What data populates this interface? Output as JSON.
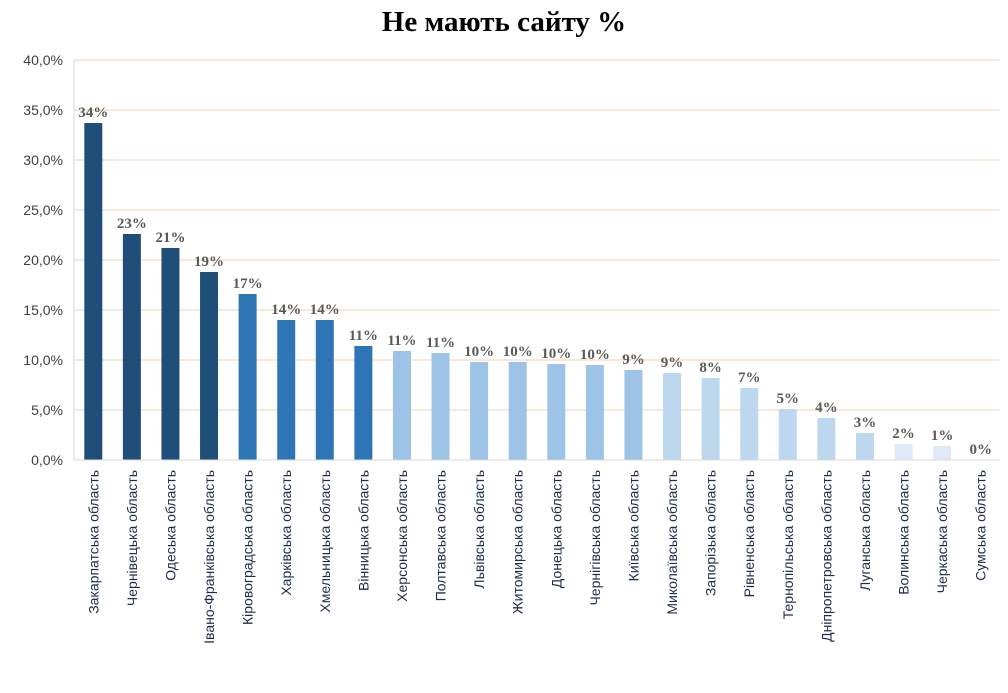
{
  "title": "Не мають сайту %",
  "chart_data": {
    "type": "bar",
    "title": "Не мають сайту %",
    "xlabel": "",
    "ylabel": "",
    "ylim": [
      0,
      40
    ],
    "yticks": [
      "0,0%",
      "5,0%",
      "10,0%",
      "15,0%",
      "20,0%",
      "25,0%",
      "30,0%",
      "35,0%",
      "40,0%"
    ],
    "grid": true,
    "legend": "none",
    "categories": [
      "Закарпатська область",
      "Чернівецька область",
      "Одеська область",
      "Івано-Франківська область",
      "Кіровоградська область",
      "Харківська область",
      "Хмельницька область",
      "Вінницька область",
      "Херсонська область",
      "Полтавська область",
      "Львівська область",
      "Житомирська область",
      "Донецька область",
      "Чернігівська область",
      "Київська область",
      "Миколаївська область",
      "Запорізька область",
      "Рівненська область",
      "Тернопільська область",
      "Дніпропетровська область",
      "Луганська область",
      "Волинська область",
      "Черкаська область",
      "Сумська область"
    ],
    "values": [
      33.7,
      22.6,
      21.2,
      18.8,
      16.6,
      14.0,
      14.0,
      11.4,
      10.9,
      10.7,
      9.8,
      9.8,
      9.6,
      9.5,
      9.0,
      8.7,
      8.2,
      7.2,
      5.1,
      4.2,
      2.7,
      1.6,
      1.4,
      0.0
    ],
    "data_labels": [
      "34%",
      "23%",
      "21%",
      "19%",
      "17%",
      "14%",
      "14%",
      "11%",
      "11%",
      "11%",
      "10%",
      "10%",
      "10%",
      "10%",
      "9%",
      "9%",
      "8%",
      "7%",
      "5%",
      "4%",
      "3%",
      "2%",
      "1%",
      "0%"
    ],
    "colors": [
      "#1f4e79",
      "#1f4e79",
      "#1f4e79",
      "#1f4e79",
      "#2e75b6",
      "#2e75b6",
      "#2e75b6",
      "#2e75b6",
      "#9dc3e6",
      "#9dc3e6",
      "#9dc3e6",
      "#9dc3e6",
      "#9dc3e6",
      "#9dc3e6",
      "#9dc3e6",
      "#bdd7ee",
      "#bdd7ee",
      "#bdd7ee",
      "#bdd7ee",
      "#bdd7ee",
      "#bdd7ee",
      "#deebf7",
      "#deebf7",
      "#deebf7"
    ],
    "grid_color": "#f4d9c2",
    "axis_color": "#d9d9d9"
  }
}
